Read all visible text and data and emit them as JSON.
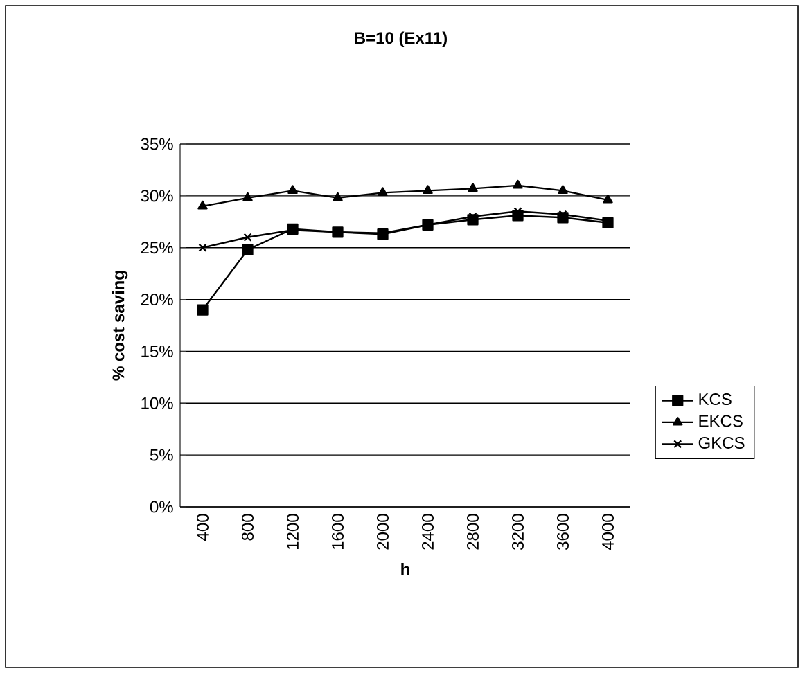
{
  "chart_data": {
    "type": "line",
    "title": "B=10 (Ex11)",
    "xlabel": "h",
    "ylabel": "% cost saving",
    "categories": [
      "400",
      "800",
      "1200",
      "1600",
      "2000",
      "2400",
      "2800",
      "3200",
      "3600",
      "4000"
    ],
    "ylim": [
      0,
      35
    ],
    "yticks": [
      {
        "value": 0,
        "label": "0%"
      },
      {
        "value": 5,
        "label": "5%"
      },
      {
        "value": 10,
        "label": "10%"
      },
      {
        "value": 15,
        "label": "15%"
      },
      {
        "value": 20,
        "label": "20%"
      },
      {
        "value": 25,
        "label": "25%"
      },
      {
        "value": 30,
        "label": "30%"
      },
      {
        "value": 35,
        "label": "35%"
      }
    ],
    "grid": "y",
    "legend": "right",
    "series": [
      {
        "name": "KCS",
        "color": "#000000",
        "marker": "square",
        "values": [
          19,
          24.8,
          26.8,
          26.5,
          26.3,
          27.2,
          27.7,
          28.1,
          27.9,
          27.4
        ]
      },
      {
        "name": "EKCS",
        "color": "#000000",
        "marker": "triangle",
        "values": [
          29,
          29.8,
          30.5,
          29.8,
          30.3,
          30.5,
          30.7,
          31,
          30.5,
          29.6
        ]
      },
      {
        "name": "GKCS",
        "color": "#000000",
        "marker": "cross",
        "values": [
          25,
          26,
          26.7,
          26.5,
          26.4,
          27.2,
          28,
          28.5,
          28.2,
          27.6
        ]
      }
    ]
  }
}
